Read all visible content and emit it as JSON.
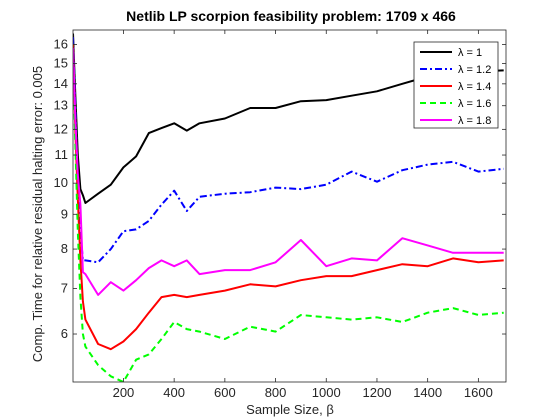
{
  "chart_data": {
    "type": "line",
    "title": "Netlib LP scorpion feasibility problem: 1709 x 466",
    "xlabel": "Sample Size, β",
    "ylabel": "Comp. Time for relative residual halting error: 0.005",
    "xlim": [
      1,
      1709
    ],
    "ylim": [
      5.1,
      16.8
    ],
    "y_scale": "log",
    "xticks": [
      200,
      400,
      600,
      800,
      1000,
      1200,
      1400,
      1600
    ],
    "yticks": [
      6,
      7,
      8,
      9,
      10,
      11,
      12,
      13,
      14,
      15,
      16
    ],
    "legend_position": "top-right",
    "grid": false,
    "series": [
      {
        "name": "λ = 1",
        "color": "#000000",
        "dash": "solid",
        "points": [
          [
            1,
            16.6
          ],
          [
            10,
            13.5
          ],
          [
            20,
            11.0
          ],
          [
            30,
            9.8
          ],
          [
            40,
            9.6
          ],
          [
            50,
            9.35
          ],
          [
            100,
            9.65
          ],
          [
            150,
            9.95
          ],
          [
            200,
            10.55
          ],
          [
            250,
            10.95
          ],
          [
            300,
            11.85
          ],
          [
            350,
            12.05
          ],
          [
            400,
            12.25
          ],
          [
            450,
            11.95
          ],
          [
            500,
            12.25
          ],
          [
            600,
            12.45
          ],
          [
            700,
            12.9
          ],
          [
            800,
            12.9
          ],
          [
            900,
            13.2
          ],
          [
            1000,
            13.25
          ],
          [
            1100,
            13.45
          ],
          [
            1200,
            13.65
          ],
          [
            1300,
            14.0
          ],
          [
            1400,
            14.35
          ],
          [
            1500,
            14.55
          ],
          [
            1600,
            14.6
          ],
          [
            1700,
            14.65
          ]
        ]
      },
      {
        "name": "λ = 1.2",
        "color": "#0000ff",
        "dash": "dashdot",
        "points": [
          [
            1,
            16.4
          ],
          [
            10,
            13.0
          ],
          [
            20,
            10.0
          ],
          [
            30,
            8.5
          ],
          [
            40,
            7.7
          ],
          [
            50,
            7.7
          ],
          [
            100,
            7.65
          ],
          [
            150,
            8.0
          ],
          [
            200,
            8.5
          ],
          [
            250,
            8.55
          ],
          [
            300,
            8.8
          ],
          [
            350,
            9.3
          ],
          [
            400,
            9.75
          ],
          [
            450,
            9.1
          ],
          [
            500,
            9.55
          ],
          [
            600,
            9.65
          ],
          [
            700,
            9.7
          ],
          [
            800,
            9.85
          ],
          [
            900,
            9.8
          ],
          [
            1000,
            9.95
          ],
          [
            1100,
            10.4
          ],
          [
            1200,
            10.05
          ],
          [
            1300,
            10.45
          ],
          [
            1400,
            10.65
          ],
          [
            1500,
            10.75
          ],
          [
            1600,
            10.4
          ],
          [
            1700,
            10.5
          ]
        ]
      },
      {
        "name": "λ = 1.4",
        "color": "#ff0000",
        "dash": "solid",
        "points": [
          [
            1,
            16.0
          ],
          [
            10,
            12.0
          ],
          [
            20,
            9.5
          ],
          [
            30,
            7.7
          ],
          [
            40,
            6.7
          ],
          [
            50,
            6.3
          ],
          [
            100,
            5.8
          ],
          [
            150,
            5.7
          ],
          [
            200,
            5.85
          ],
          [
            250,
            6.1
          ],
          [
            300,
            6.45
          ],
          [
            350,
            6.8
          ],
          [
            400,
            6.85
          ],
          [
            450,
            6.8
          ],
          [
            500,
            6.85
          ],
          [
            600,
            6.95
          ],
          [
            700,
            7.1
          ],
          [
            800,
            7.05
          ],
          [
            900,
            7.2
          ],
          [
            1000,
            7.3
          ],
          [
            1100,
            7.3
          ],
          [
            1200,
            7.45
          ],
          [
            1300,
            7.6
          ],
          [
            1400,
            7.55
          ],
          [
            1500,
            7.75
          ],
          [
            1600,
            7.65
          ],
          [
            1700,
            7.7
          ]
        ]
      },
      {
        "name": "λ = 1.6",
        "color": "#00ff00",
        "dash": "dashed",
        "points": [
          [
            1,
            15.5
          ],
          [
            10,
            11.5
          ],
          [
            20,
            8.5
          ],
          [
            30,
            6.8
          ],
          [
            40,
            6.0
          ],
          [
            50,
            5.75
          ],
          [
            100,
            5.4
          ],
          [
            150,
            5.2
          ],
          [
            200,
            5.1
          ],
          [
            250,
            5.5
          ],
          [
            300,
            5.6
          ],
          [
            350,
            5.9
          ],
          [
            400,
            6.25
          ],
          [
            450,
            6.1
          ],
          [
            500,
            6.05
          ],
          [
            600,
            5.9
          ],
          [
            700,
            6.15
          ],
          [
            800,
            6.05
          ],
          [
            900,
            6.4
          ],
          [
            1000,
            6.35
          ],
          [
            1100,
            6.3
          ],
          [
            1200,
            6.35
          ],
          [
            1300,
            6.25
          ],
          [
            1400,
            6.45
          ],
          [
            1500,
            6.55
          ],
          [
            1600,
            6.4
          ],
          [
            1700,
            6.45
          ]
        ]
      },
      {
        "name": "λ = 1.8",
        "color": "#ff00ff",
        "dash": "solid",
        "points": [
          [
            1,
            15.8
          ],
          [
            10,
            12.5
          ],
          [
            20,
            10.3
          ],
          [
            30,
            9.3
          ],
          [
            40,
            7.4
          ],
          [
            50,
            7.35
          ],
          [
            100,
            6.85
          ],
          [
            150,
            7.15
          ],
          [
            200,
            6.95
          ],
          [
            250,
            7.2
          ],
          [
            300,
            7.5
          ],
          [
            350,
            7.7
          ],
          [
            400,
            7.55
          ],
          [
            450,
            7.7
          ],
          [
            500,
            7.35
          ],
          [
            600,
            7.45
          ],
          [
            700,
            7.45
          ],
          [
            800,
            7.65
          ],
          [
            900,
            8.25
          ],
          [
            1000,
            7.55
          ],
          [
            1100,
            7.75
          ],
          [
            1200,
            7.7
          ],
          [
            1300,
            8.3
          ],
          [
            1400,
            8.1
          ],
          [
            1500,
            7.9
          ],
          [
            1600,
            7.9
          ],
          [
            1700,
            7.9
          ]
        ]
      }
    ]
  }
}
